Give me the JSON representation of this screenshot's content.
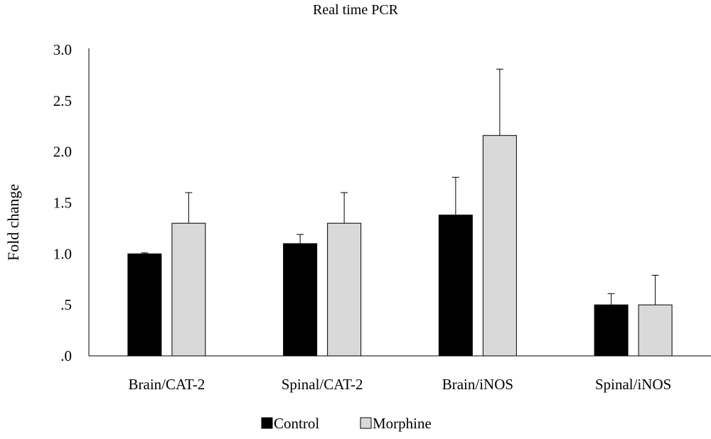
{
  "chart_data": {
    "type": "bar",
    "title": "Real time PCR",
    "xlabel": "",
    "ylabel": "Fold change",
    "ylim": [
      0,
      3.0
    ],
    "yticks": [
      0,
      0.5,
      1.0,
      1.5,
      2.0,
      2.5,
      3.0
    ],
    "ytick_labels": [
      ".0",
      ".5",
      "1.0",
      "1.5",
      "2.0",
      "2.5",
      "3.0"
    ],
    "categories": [
      "Brain/CAT-2",
      "Spinal/CAT-2",
      "Brain/iNOS",
      "Spinal/iNOS"
    ],
    "series": [
      {
        "name": "Control",
        "color": "#000000",
        "values": [
          1.0,
          1.1,
          1.38,
          0.5
        ],
        "error": [
          0.01,
          0.09,
          0.37,
          0.11
        ]
      },
      {
        "name": "Morphine",
        "color": "#d9d9d9",
        "values": [
          1.3,
          1.3,
          2.16,
          0.5
        ],
        "error": [
          0.3,
          0.3,
          0.65,
          0.29
        ]
      }
    ],
    "grid": false,
    "legend_position": "bottom"
  }
}
